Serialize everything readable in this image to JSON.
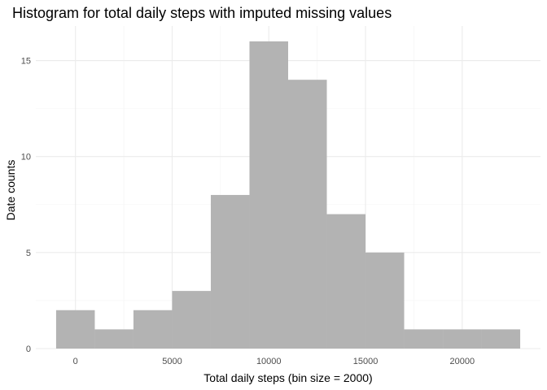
{
  "chart_data": {
    "type": "bar",
    "title": "Histogram for total daily steps with imputed missing values",
    "xlabel": "Total daily steps (bin size = 2000)",
    "ylabel": "Date counts",
    "bin_width": 2000,
    "bins": [
      {
        "x_start": -1000,
        "x_end": 1000,
        "count": 2
      },
      {
        "x_start": 1000,
        "x_end": 3000,
        "count": 1
      },
      {
        "x_start": 3000,
        "x_end": 5000,
        "count": 2
      },
      {
        "x_start": 5000,
        "x_end": 7000,
        "count": 3
      },
      {
        "x_start": 7000,
        "x_end": 9000,
        "count": 8
      },
      {
        "x_start": 9000,
        "x_end": 11000,
        "count": 16
      },
      {
        "x_start": 11000,
        "x_end": 13000,
        "count": 14
      },
      {
        "x_start": 13000,
        "x_end": 15000,
        "count": 7
      },
      {
        "x_start": 15000,
        "x_end": 17000,
        "count": 5
      },
      {
        "x_start": 17000,
        "x_end": 19000,
        "count": 1
      },
      {
        "x_start": 19000,
        "x_end": 21000,
        "count": 1
      },
      {
        "x_start": 21000,
        "x_end": 23000,
        "count": 1
      }
    ],
    "xlim": [
      -2050,
      24050
    ],
    "ylim": [
      0,
      16.8
    ],
    "x_ticks": [
      "0",
      "5000",
      "10000",
      "15000",
      "20000"
    ],
    "y_ticks": [
      "0",
      "5",
      "10",
      "15"
    ],
    "grid": true,
    "legend": "none",
    "colors": {
      "bar": "#b3b3b3",
      "grid_major": "#ebebeb",
      "grid_minor": "#f4f4f4",
      "tick_text": "#4d4d4d"
    }
  }
}
